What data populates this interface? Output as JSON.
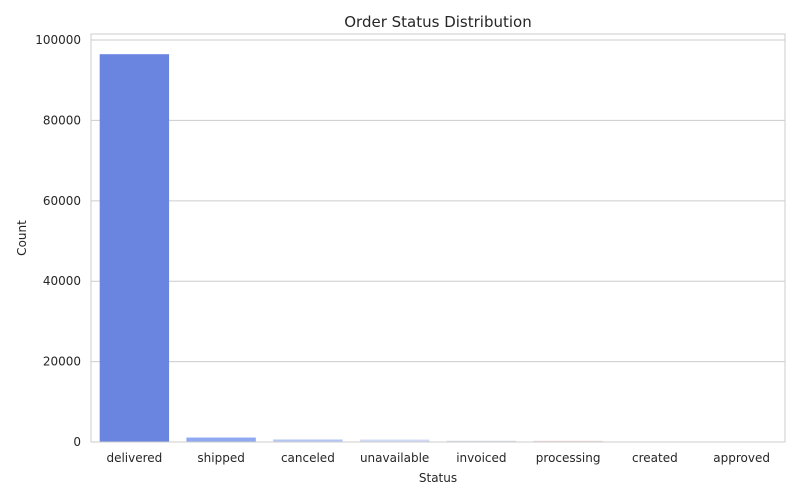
{
  "chart_data": {
    "type": "bar",
    "title": "Order Status Distribution",
    "xlabel": "Status",
    "ylabel": "Count",
    "categories": [
      "delivered",
      "shipped",
      "canceled",
      "unavailable",
      "invoiced",
      "processing",
      "created",
      "approved"
    ],
    "values": [
      96478,
      1107,
      625,
      609,
      314,
      301,
      5,
      2
    ],
    "ylim": [
      0,
      101500
    ],
    "yticks": [
      0,
      20000,
      40000,
      60000,
      80000,
      100000
    ],
    "ytick_labels": [
      "0",
      "20000",
      "40000",
      "60000",
      "80000",
      "100000"
    ],
    "grid": true,
    "bar_colors": [
      "#6a85e0",
      "#8ea8f2",
      "#b4c6f5",
      "#cfd8f4",
      "#dadde6",
      "#e6d8d3",
      "#ecc7b8",
      "#f0b79d"
    ]
  }
}
